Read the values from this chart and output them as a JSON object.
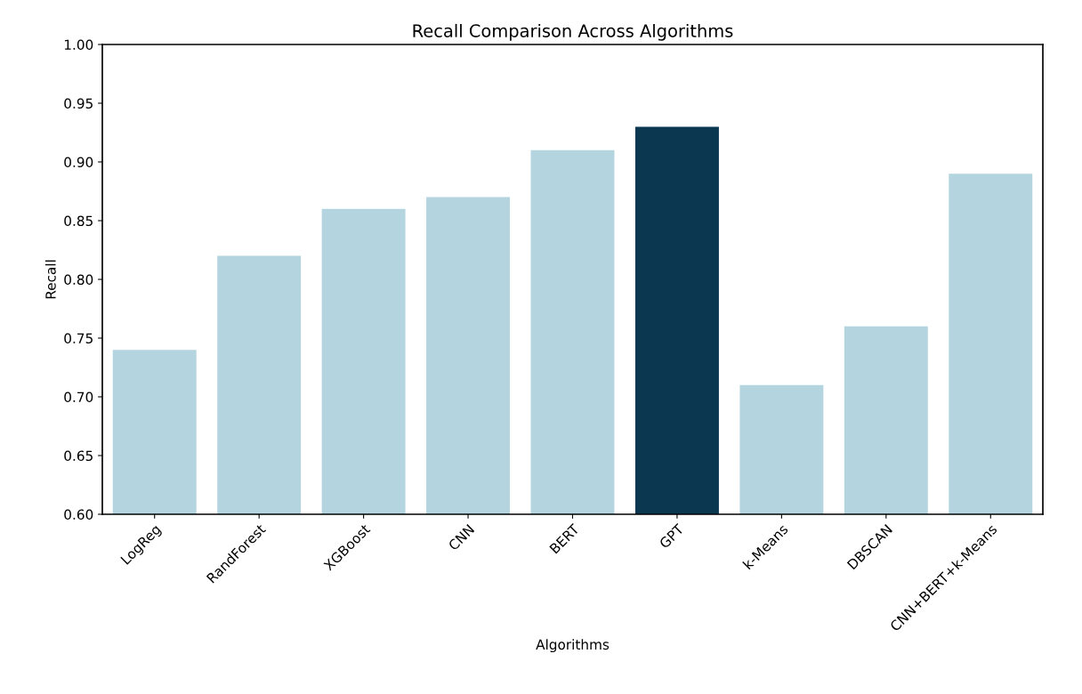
{
  "chart_data": {
    "type": "bar",
    "title": "Recall Comparison Across Algorithms",
    "xlabel": "Algorithms",
    "ylabel": "Recall",
    "categories": [
      "LogReg",
      "RandForest",
      "XGBoost",
      "CNN",
      "BERT",
      "GPT",
      "k-Means",
      "DBSCAN",
      "CNN+BERT+k-Means"
    ],
    "values": [
      0.74,
      0.82,
      0.86,
      0.87,
      0.91,
      0.93,
      0.71,
      0.76,
      0.89
    ],
    "colors": [
      "#b4d5e0",
      "#b4d5e0",
      "#b4d5e0",
      "#b4d5e0",
      "#b4d5e0",
      "#0c3750",
      "#b4d5e0",
      "#b4d5e0",
      "#b4d5e0"
    ],
    "ylim": [
      0.6,
      1.0
    ],
    "yticks": [
      {
        "value": 0.6,
        "label": "0.60"
      },
      {
        "value": 0.65,
        "label": "0.65"
      },
      {
        "value": 0.7,
        "label": "0.70"
      },
      {
        "value": 0.75,
        "label": "0.75"
      },
      {
        "value": 0.8,
        "label": "0.80"
      },
      {
        "value": 0.85,
        "label": "0.85"
      },
      {
        "value": 0.9,
        "label": "0.90"
      },
      {
        "value": 0.95,
        "label": "0.95"
      },
      {
        "value": 1.0,
        "label": "1.00"
      }
    ],
    "grid": false
  }
}
